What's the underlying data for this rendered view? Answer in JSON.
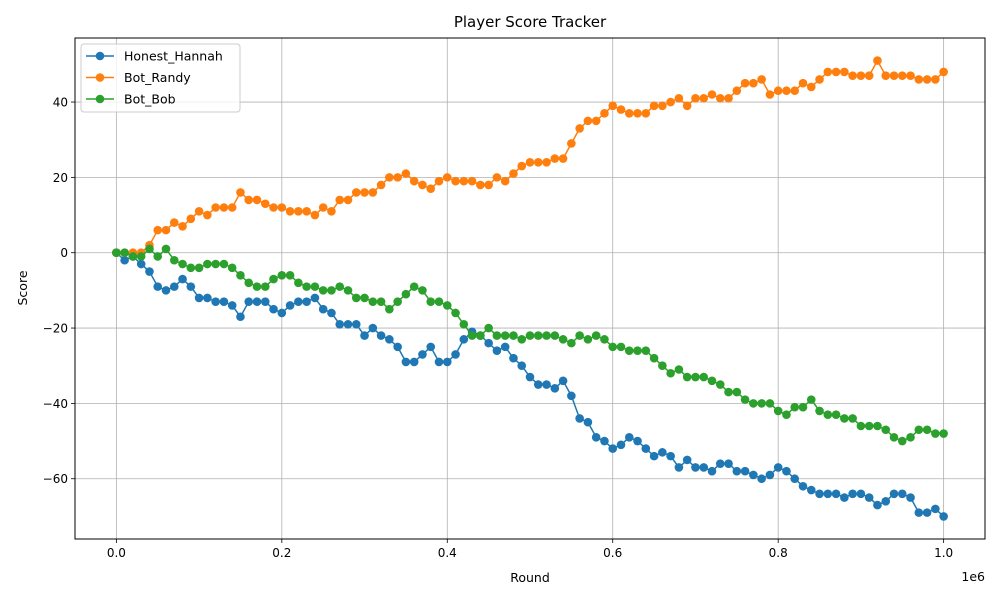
{
  "chart_data": {
    "type": "line",
    "title": "Player Score Tracker",
    "xlabel": "Round",
    "ylabel": "Score",
    "x_offset_label": "1e6",
    "xlim": [
      -50000,
      1050000
    ],
    "ylim": [
      -76,
      57
    ],
    "x_ticks": [
      0,
      200000,
      400000,
      600000,
      800000,
      1000000
    ],
    "x_tick_labels": [
      "0.0",
      "0.2",
      "0.4",
      "0.6",
      "0.8",
      "1.0"
    ],
    "y_ticks": [
      -60,
      -40,
      -20,
      0,
      20,
      40
    ],
    "y_tick_labels": [
      "−60",
      "−40",
      "−20",
      "0",
      "20",
      "40"
    ],
    "grid": true,
    "legend_position": "upper-left",
    "x": [
      0,
      10000,
      20000,
      30000,
      40000,
      50000,
      60000,
      70000,
      80000,
      90000,
      100000,
      110000,
      120000,
      130000,
      140000,
      150000,
      160000,
      170000,
      180000,
      190000,
      200000,
      210000,
      220000,
      230000,
      240000,
      250000,
      260000,
      270000,
      280000,
      290000,
      300000,
      310000,
      320000,
      330000,
      340000,
      350000,
      360000,
      370000,
      380000,
      390000,
      400000,
      410000,
      420000,
      430000,
      440000,
      450000,
      460000,
      470000,
      480000,
      490000,
      500000,
      510000,
      520000,
      530000,
      540000,
      550000,
      560000,
      570000,
      580000,
      590000,
      600000,
      610000,
      620000,
      630000,
      640000,
      650000,
      660000,
      670000,
      680000,
      690000,
      700000,
      710000,
      720000,
      730000,
      740000,
      750000,
      760000,
      770000,
      780000,
      790000,
      800000,
      810000,
      820000,
      830000,
      840000,
      850000,
      860000,
      870000,
      880000,
      890000,
      900000,
      910000,
      920000,
      930000,
      940000,
      950000,
      960000,
      970000,
      980000,
      990000,
      1000000
    ],
    "series": [
      {
        "name": "Honest_Hannah",
        "color": "#1f77b4",
        "values": [
          0,
          -2,
          -1,
          -3,
          -5,
          -9,
          -10,
          -9,
          -7,
          -9,
          -12,
          -12,
          -13,
          -13,
          -14,
          -17,
          -13,
          -13,
          -13,
          -15,
          -16,
          -14,
          -13,
          -13,
          -12,
          -15,
          -16,
          -19,
          -19,
          -19,
          -22,
          -20,
          -22,
          -23,
          -25,
          -29,
          -29,
          -27,
          -25,
          -29,
          -29,
          -27,
          -23,
          -21,
          -22,
          -24,
          -26,
          -25,
          -28,
          -30,
          -33,
          -35,
          -35,
          -36,
          -34,
          -38,
          -44,
          -45,
          -49,
          -50,
          -52,
          -51,
          -49,
          -50,
          -52,
          -54,
          -53,
          -54,
          -57,
          -55,
          -57,
          -57,
          -58,
          -56,
          -56,
          -58,
          -58,
          -59,
          -60,
          -59,
          -57,
          -58,
          -60,
          -62,
          -63,
          -64,
          -64,
          -64,
          -65,
          -64,
          -64,
          -65,
          -67,
          -66,
          -64,
          -64,
          -65,
          -69,
          -69,
          -68,
          -70
        ]
      },
      {
        "name": "Bot_Randy",
        "color": "#ff7f0e",
        "values": [
          0,
          0,
          0,
          0,
          2,
          6,
          6,
          8,
          7,
          9,
          11,
          10,
          12,
          12,
          12,
          16,
          14,
          14,
          13,
          12,
          12,
          11,
          11,
          11,
          10,
          12,
          11,
          14,
          14,
          16,
          16,
          16,
          18,
          20,
          20,
          21,
          19,
          18,
          17,
          19,
          20,
          19,
          19,
          19,
          18,
          18,
          20,
          19,
          21,
          23,
          24,
          24,
          24,
          25,
          25,
          29,
          33,
          35,
          35,
          37,
          39,
          38,
          37,
          37,
          37,
          39,
          39,
          40,
          41,
          39,
          41,
          41,
          42,
          41,
          41,
          43,
          45,
          45,
          46,
          42,
          43,
          43,
          43,
          45,
          44,
          46,
          48,
          48,
          48,
          47,
          47,
          47,
          51,
          47,
          47,
          47,
          47,
          46,
          46,
          46,
          48
        ]
      },
      {
        "name": "Bot_Bob",
        "color": "#2ca02c",
        "values": [
          0,
          0,
          -1,
          -1,
          1,
          -1,
          1,
          -2,
          -3,
          -4,
          -4,
          -3,
          -3,
          -3,
          -4,
          -6,
          -8,
          -9,
          -9,
          -7,
          -6,
          -6,
          -8,
          -9,
          -9,
          -10,
          -10,
          -9,
          -10,
          -12,
          -12,
          -13,
          -13,
          -15,
          -13,
          -11,
          -9,
          -10,
          -13,
          -13,
          -14,
          -16,
          -19,
          -22,
          -22,
          -20,
          -22,
          -22,
          -22,
          -23,
          -22,
          -22,
          -22,
          -22,
          -23,
          -24,
          -22,
          -23,
          -22,
          -23,
          -25,
          -25,
          -26,
          -26,
          -26,
          -28,
          -30,
          -32,
          -31,
          -33,
          -33,
          -33,
          -34,
          -35,
          -37,
          -37,
          -39,
          -40,
          -40,
          -40,
          -42,
          -43,
          -41,
          -41,
          -39,
          -42,
          -43,
          -43,
          -44,
          -44,
          -46,
          -46,
          -46,
          -47,
          -49,
          -50,
          -49,
          -47,
          -47,
          -48,
          -48
        ]
      }
    ]
  }
}
